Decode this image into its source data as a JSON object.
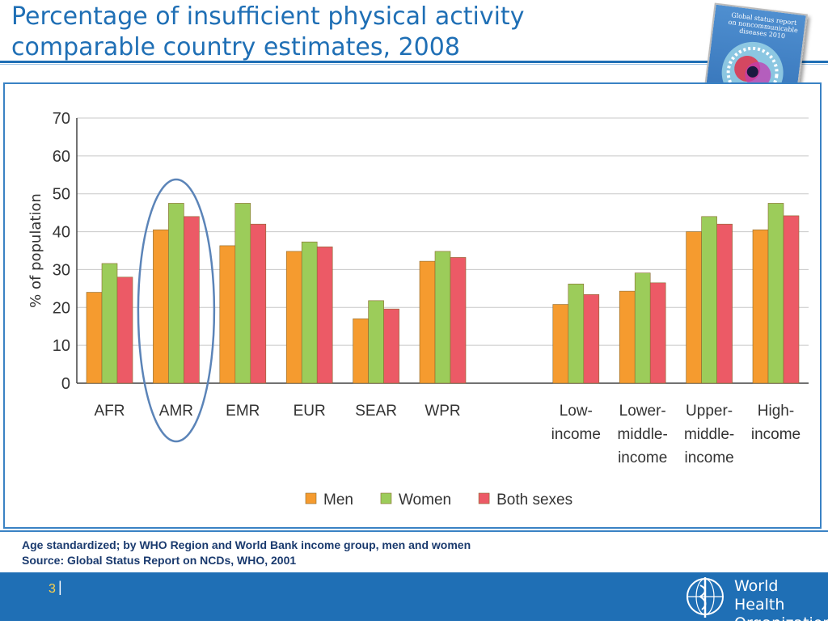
{
  "slide": {
    "title_lines": [
      "Percentage of insufficient physical activity",
      "comparable country estimates, 2008"
    ],
    "footnote_lines": [
      "Age standardized; by WHO Region and World Bank income group, men and women",
      "Source: Global Status Report on NCDs, WHO, 2001"
    ],
    "page_number": "3",
    "page_separator": "|",
    "logo_text_lines": [
      "World Health",
      "Organization"
    ],
    "report_cover_title": "Global status report on noncommunicable diseases 2010"
  },
  "chart_data": {
    "type": "bar",
    "title": "",
    "xlabel": "",
    "ylabel": "% of population",
    "ylim": [
      0,
      70
    ],
    "yticks": [
      0,
      10,
      20,
      30,
      40,
      50,
      60,
      70
    ],
    "grid": true,
    "legend_position": "bottom",
    "categories": [
      [
        "AFR"
      ],
      [
        "AMR"
      ],
      [
        "EMR"
      ],
      [
        "EUR"
      ],
      [
        "SEAR"
      ],
      [
        "WPR"
      ],
      [
        "Low-",
        "income"
      ],
      [
        "Lower-",
        "middle-",
        "income"
      ],
      [
        "Upper-",
        "middle-",
        "income"
      ],
      [
        "High-",
        "income"
      ]
    ],
    "group_gap_after_index": 5,
    "highlighted_category_index": 1,
    "series": [
      {
        "name": "Men",
        "color": "#f59b2f",
        "values": [
          24,
          40.5,
          36.3,
          34.8,
          17,
          32.2,
          20.8,
          24.3,
          40,
          40.5
        ]
      },
      {
        "name": "Women",
        "color": "#9ccc5a",
        "values": [
          31.6,
          47.5,
          47.5,
          37.3,
          21.8,
          34.8,
          26.2,
          29.1,
          44,
          47.5
        ]
      },
      {
        "name": "Both sexes",
        "color": "#ec5a66",
        "values": [
          28,
          44,
          42,
          36,
          19.6,
          33.2,
          23.4,
          26.5,
          42,
          44.2
        ]
      }
    ],
    "highlight_color": "#5b84b8"
  }
}
